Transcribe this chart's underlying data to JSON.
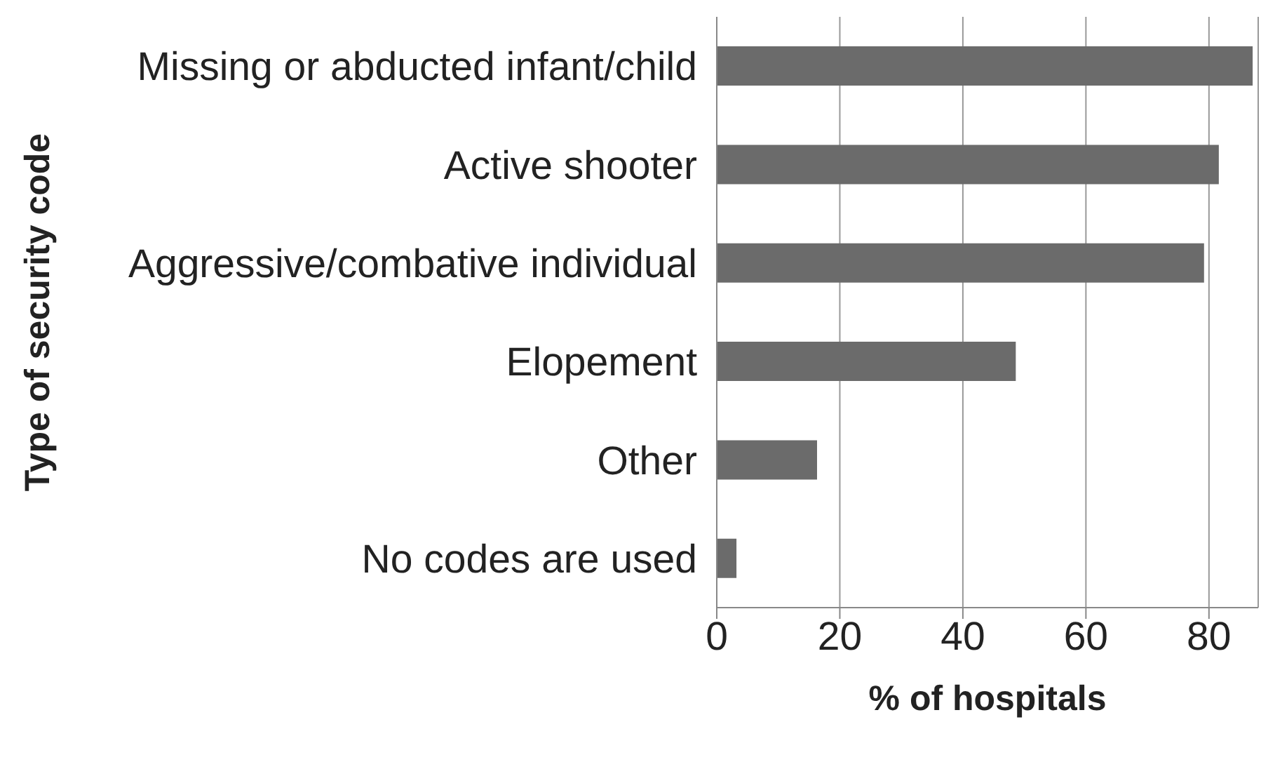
{
  "chart_data": {
    "type": "bar",
    "orientation": "horizontal",
    "xlabel": "% of hospitals",
    "ylabel": "Type of security code",
    "categories": [
      "Missing or abducted infant/child",
      "Active shooter",
      "Aggressive/combative individual",
      "Elopement",
      "Other",
      "No codes are used"
    ],
    "values": [
      87.1,
      81.6,
      79.2,
      48.6,
      16.3,
      3.2
    ],
    "color": "#6b6b6b",
    "xlim": [
      0,
      88
    ],
    "xticks": [
      0,
      20,
      40,
      60,
      80
    ],
    "grid": "x",
    "legend": false
  }
}
